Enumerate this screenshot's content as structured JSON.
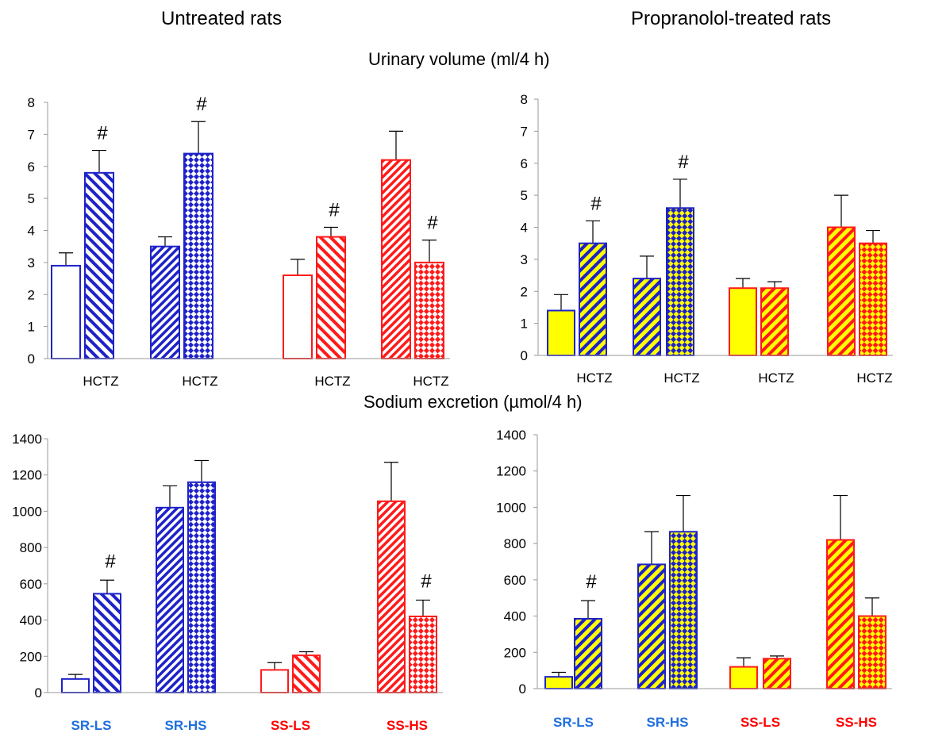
{
  "headings": {
    "left": "Untreated rats",
    "right": "Propranolol-treated rats",
    "top_chart": "Urinary volume (ml/4 h)",
    "bottom_chart": "Sodium excretion (µmol/4 h)"
  },
  "colors": {
    "blue": "#1e22c8",
    "red": "#ff1a1a",
    "yellow": "#ffff00",
    "label_blue": "#1f6fe0",
    "label_red": "#ff0000"
  },
  "chart_data": [
    {
      "type": "bar",
      "panel": "Untreated rats",
      "title": "Urinary volume (ml/4 h)",
      "ylim": [
        0,
        8
      ],
      "yticks": [
        "0",
        "1",
        "2",
        "3",
        "4",
        "5",
        "6",
        "7",
        "8"
      ],
      "bars": [
        {
          "group": "SR-LS",
          "value": 2.9,
          "error": 0.4,
          "color": "blue",
          "fill": "open",
          "marker": "",
          "xlabel": ""
        },
        {
          "group": "SR-LS",
          "value": 5.8,
          "error": 0.7,
          "color": "blue",
          "fill": "hatch-diagonal",
          "marker": "#",
          "xlabel": "HCTZ"
        },
        {
          "group": "SR-HS",
          "value": 3.5,
          "error": 0.3,
          "color": "blue",
          "fill": "hatch-dense",
          "marker": "",
          "xlabel": ""
        },
        {
          "group": "SR-HS",
          "value": 6.4,
          "error": 1.0,
          "color": "blue",
          "fill": "checker",
          "marker": "#",
          "xlabel": "HCTZ"
        },
        {
          "group": "SS-LS",
          "value": 2.6,
          "error": 0.5,
          "color": "red",
          "fill": "open",
          "marker": "",
          "xlabel": ""
        },
        {
          "group": "SS-LS",
          "value": 3.8,
          "error": 0.3,
          "color": "red",
          "fill": "hatch-diagonal",
          "marker": "#",
          "xlabel": "HCTZ"
        },
        {
          "group": "SS-HS",
          "value": 6.2,
          "error": 0.9,
          "color": "red",
          "fill": "hatch-dense",
          "marker": "",
          "xlabel": ""
        },
        {
          "group": "SS-HS",
          "value": 3.0,
          "error": 0.7,
          "color": "red",
          "fill": "checker",
          "marker": "#",
          "xlabel": "HCTZ"
        }
      ]
    },
    {
      "type": "bar",
      "panel": "Propranolol-treated rats",
      "title": "Urinary volume (ml/4 h)",
      "ylim": [
        0,
        8
      ],
      "yticks": [
        "0",
        "1",
        "2",
        "3",
        "4",
        "5",
        "6",
        "7",
        "8"
      ],
      "bars": [
        {
          "group": "SR-LS",
          "value": 1.4,
          "error": 0.5,
          "color": "blue",
          "fill": "solid-yellow",
          "marker": "",
          "xlabel": ""
        },
        {
          "group": "SR-LS",
          "value": 3.5,
          "error": 0.7,
          "color": "blue",
          "fill": "yellow-hatch",
          "marker": "#",
          "xlabel": "HCTZ"
        },
        {
          "group": "SR-HS",
          "value": 2.4,
          "error": 0.7,
          "color": "blue",
          "fill": "yellow-hatch",
          "marker": "",
          "xlabel": ""
        },
        {
          "group": "SR-HS",
          "value": 4.6,
          "error": 0.9,
          "color": "blue",
          "fill": "yellow-checker",
          "marker": "#",
          "xlabel": "HCTZ"
        },
        {
          "group": "SS-LS",
          "value": 2.1,
          "error": 0.3,
          "color": "red",
          "fill": "solid-yellow",
          "marker": "",
          "xlabel": ""
        },
        {
          "group": "SS-LS",
          "value": 2.1,
          "error": 0.2,
          "color": "red",
          "fill": "yellow-hatch",
          "marker": "",
          "xlabel": "HCTZ"
        },
        {
          "group": "SS-HS",
          "value": 4.0,
          "error": 1.0,
          "color": "red",
          "fill": "yellow-hatch",
          "marker": "",
          "xlabel": ""
        },
        {
          "group": "SS-HS",
          "value": 3.5,
          "error": 0.4,
          "color": "red",
          "fill": "yellow-checker",
          "marker": "",
          "xlabel": "HCTZ"
        }
      ]
    },
    {
      "type": "bar",
      "panel": "Untreated rats",
      "title": "Sodium excretion (µmol/4 h)",
      "ylim": [
        0,
        1400
      ],
      "yticks": [
        "0",
        "200",
        "400",
        "600",
        "800",
        "1000",
        "1200",
        "1400"
      ],
      "bars": [
        {
          "group": "SR-LS",
          "value": 75,
          "error": 25,
          "color": "blue",
          "fill": "open",
          "marker": "",
          "xlabel": ""
        },
        {
          "group": "SR-LS",
          "value": 545,
          "error": 75,
          "color": "blue",
          "fill": "hatch-diagonal",
          "marker": "#",
          "xlabel": ""
        },
        {
          "group": "SR-HS",
          "value": 1020,
          "error": 120,
          "color": "blue",
          "fill": "hatch-dense",
          "marker": "",
          "xlabel": ""
        },
        {
          "group": "SR-HS",
          "value": 1160,
          "error": 120,
          "color": "blue",
          "fill": "checker",
          "marker": "",
          "xlabel": ""
        },
        {
          "group": "SS-LS",
          "value": 125,
          "error": 40,
          "color": "red",
          "fill": "open",
          "marker": "",
          "xlabel": ""
        },
        {
          "group": "SS-LS",
          "value": 205,
          "error": 20,
          "color": "red",
          "fill": "hatch-diagonal",
          "marker": "",
          "xlabel": ""
        },
        {
          "group": "SS-HS",
          "value": 1055,
          "error": 215,
          "color": "red",
          "fill": "hatch-dense",
          "marker": "",
          "xlabel": ""
        },
        {
          "group": "SS-HS",
          "value": 420,
          "error": 90,
          "color": "red",
          "fill": "checker",
          "marker": "#",
          "xlabel": ""
        }
      ],
      "group_labels": [
        {
          "text": "SR-LS",
          "color": "label_blue"
        },
        {
          "text": "SR-HS",
          "color": "label_blue"
        },
        {
          "text": "SS-LS",
          "color": "label_red"
        },
        {
          "text": "SS-HS",
          "color": "label_red"
        }
      ]
    },
    {
      "type": "bar",
      "panel": "Propranolol-treated rats",
      "title": "Sodium excretion (µmol/4 h)",
      "ylim": [
        0,
        1400
      ],
      "yticks": [
        "0",
        "200",
        "400",
        "600",
        "800",
        "1000",
        "1200",
        "1400"
      ],
      "bars": [
        {
          "group": "SR-LS",
          "value": 65,
          "error": 25,
          "color": "blue",
          "fill": "solid-yellow",
          "marker": "",
          "xlabel": ""
        },
        {
          "group": "SR-LS",
          "value": 385,
          "error": 100,
          "color": "blue",
          "fill": "yellow-hatch",
          "marker": "#",
          "xlabel": ""
        },
        {
          "group": "SR-HS",
          "value": 685,
          "error": 180,
          "color": "blue",
          "fill": "yellow-hatch",
          "marker": "",
          "xlabel": ""
        },
        {
          "group": "SR-HS",
          "value": 865,
          "error": 200,
          "color": "blue",
          "fill": "yellow-checker",
          "marker": "",
          "xlabel": ""
        },
        {
          "group": "SS-LS",
          "value": 120,
          "error": 50,
          "color": "red",
          "fill": "solid-yellow",
          "marker": "",
          "xlabel": ""
        },
        {
          "group": "SS-LS",
          "value": 165,
          "error": 15,
          "color": "red",
          "fill": "yellow-hatch",
          "marker": "",
          "xlabel": ""
        },
        {
          "group": "SS-HS",
          "value": 820,
          "error": 245,
          "color": "red",
          "fill": "yellow-hatch",
          "marker": "",
          "xlabel": ""
        },
        {
          "group": "SS-HS",
          "value": 400,
          "error": 100,
          "color": "red",
          "fill": "yellow-checker",
          "marker": "",
          "xlabel": ""
        }
      ],
      "group_labels": [
        {
          "text": "SR-LS",
          "color": "label_blue"
        },
        {
          "text": "SR-HS",
          "color": "label_blue"
        },
        {
          "text": "SS-LS",
          "color": "label_red"
        },
        {
          "text": "SS-HS",
          "color": "label_red"
        }
      ]
    }
  ]
}
